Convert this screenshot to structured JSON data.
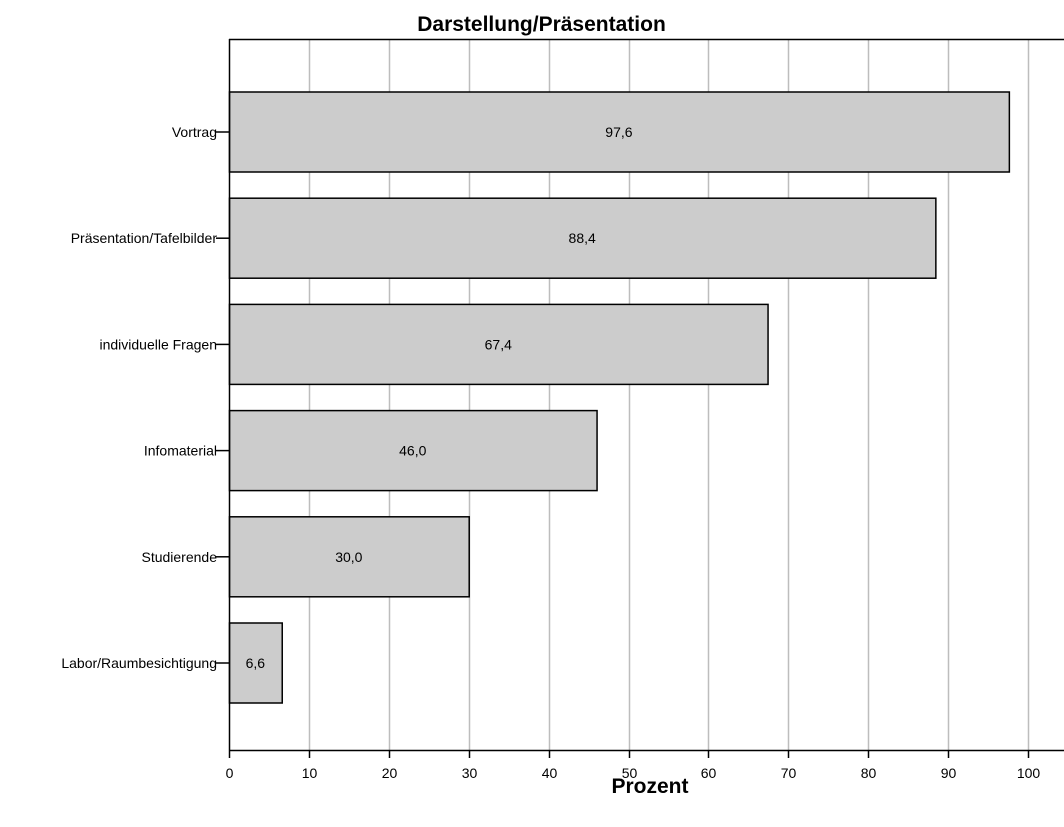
{
  "chart_data": {
    "type": "bar",
    "orientation": "horizontal",
    "title": "Darstellung/Präsentation",
    "xlabel": "Prozent",
    "ylabel": "",
    "categories": [
      "Vortrag",
      "Präsentation/Tafelbilder",
      "individuelle Fragen",
      "Infomaterial",
      "Studierende",
      "Labor/Raumbesichtigung"
    ],
    "values": [
      97.6,
      88.4,
      67.4,
      46.0,
      30.0,
      6.6
    ],
    "data_labels": [
      "97,6",
      "88,4",
      "67,4",
      "46,0",
      "30,0",
      "6,6"
    ],
    "xlim": [
      0,
      104.5
    ],
    "xticks": [
      0,
      10,
      20,
      30,
      40,
      50,
      60,
      70,
      80,
      90,
      100
    ],
    "xtick_labels": [
      "0",
      "10",
      "20",
      "30",
      "40",
      "50",
      "60",
      "70",
      "80",
      "90",
      "100"
    ],
    "grid": "vertical",
    "legend": "none",
    "colors": {
      "bar_fill": "#cccccc",
      "bar_stroke": "#000000",
      "grid": "#bdbdbd",
      "axis": "#000000"
    }
  }
}
